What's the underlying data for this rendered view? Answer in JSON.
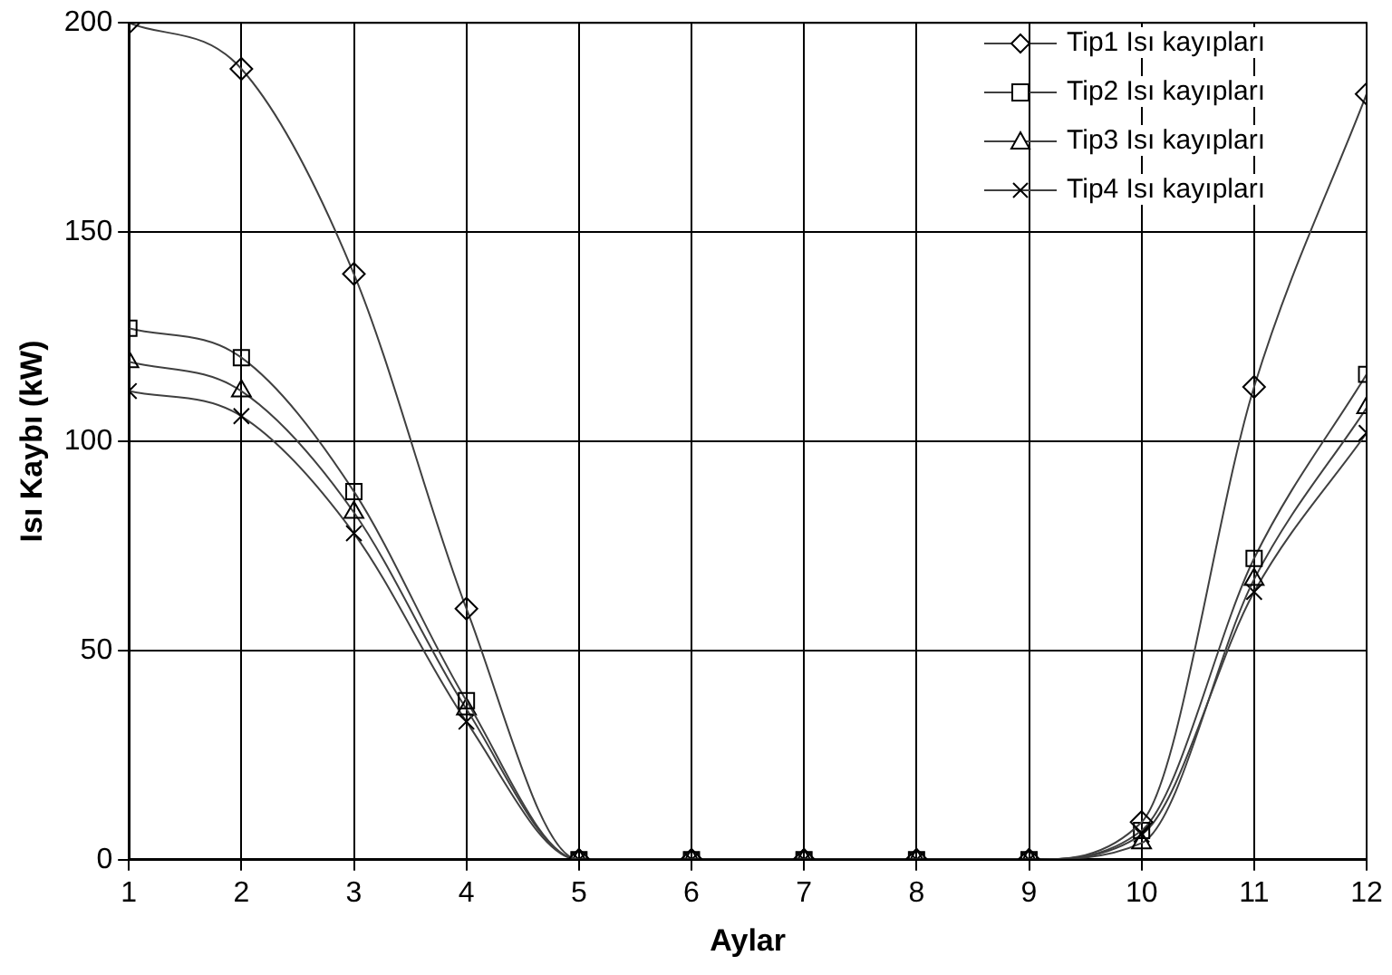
{
  "chart_data": {
    "type": "line",
    "xlabel": "Aylar",
    "ylabel": "Isı Kaybı (kW)",
    "x": [
      1,
      2,
      3,
      4,
      5,
      6,
      7,
      8,
      9,
      10,
      11,
      12
    ],
    "xlim": [
      1,
      12
    ],
    "xticks": [
      1,
      2,
      3,
      4,
      5,
      6,
      7,
      8,
      9,
      10,
      11,
      12
    ],
    "ylim": [
      0,
      200
    ],
    "yticks": [
      0,
      50,
      100,
      150,
      200
    ],
    "grid": true,
    "legend": "top right",
    "line_style": "solid",
    "series": [
      {
        "name": "Tip1 Isı kayıpları",
        "color": "#404040",
        "marker": "diamond",
        "values": [
          200,
          189,
          140,
          60,
          0,
          0,
          0,
          0,
          0,
          9,
          113,
          183
        ]
      },
      {
        "name": "Tip2 Isı kayıpları",
        "color": "#404040",
        "marker": "square",
        "values": [
          127,
          120,
          88,
          38,
          0,
          0,
          0,
          0,
          0,
          7,
          72,
          116
        ]
      },
      {
        "name": "Tip3 Isı kayıpları",
        "color": "#404040",
        "marker": "triangle",
        "values": [
          119,
          112,
          83,
          36,
          0,
          0,
          0,
          0,
          0,
          4,
          67,
          108
        ]
      },
      {
        "name": "Tip4 Isı kayıpları",
        "color": "#404040",
        "marker": "cross",
        "values": [
          112,
          106,
          78,
          33,
          0,
          0,
          0,
          0,
          0,
          6,
          64,
          102
        ]
      }
    ]
  }
}
